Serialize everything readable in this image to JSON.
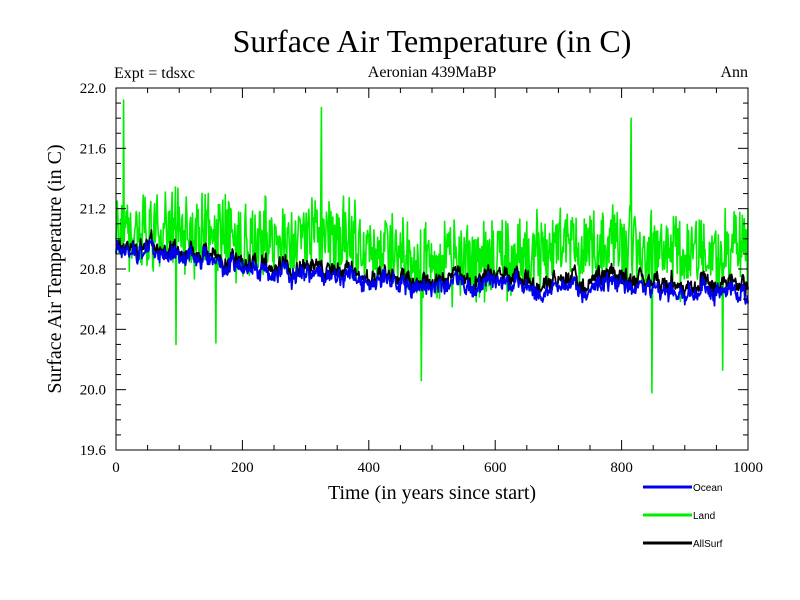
{
  "chart_data": {
    "type": "line",
    "title": "Surface Air Temperature (in C)",
    "subtitle_left": "Expt = tdsxc",
    "subtitle_center": "Aeronian 439MaBP",
    "subtitle_right": "Ann",
    "xlabel": "Time (in years since start)",
    "ylabel": "Surface Air Temperature (in C)",
    "xlim": [
      0,
      1000
    ],
    "ylim": [
      19.6,
      22.0
    ],
    "x_ticks": [
      0,
      200,
      400,
      600,
      800,
      1000
    ],
    "x_tick_labels": [
      "0",
      "200",
      "400",
      "600",
      "800",
      "1000"
    ],
    "y_ticks": [
      19.6,
      20.0,
      20.4,
      20.8,
      21.2,
      21.6,
      22.0
    ],
    "y_tick_labels": [
      "19.6",
      "20.0",
      "20.4",
      "20.8",
      "21.2",
      "21.6",
      "22.0"
    ],
    "legend_position": "bottom-right, below plot",
    "series": [
      {
        "name": "Land",
        "color": "#00ee00",
        "x": [
          0,
          100,
          200,
          300,
          400,
          500,
          600,
          700,
          800,
          900,
          1000
        ],
        "values": [
          21.05,
          21.05,
          21.0,
          21.05,
          20.95,
          20.85,
          20.85,
          20.95,
          20.95,
          20.9,
          20.95
        ],
        "noise_amplitude": 0.32,
        "extremes": [
          {
            "x": 12,
            "y": 21.92
          },
          {
            "x": 325,
            "y": 21.87
          },
          {
            "x": 815,
            "y": 21.8
          },
          {
            "x": 483,
            "y": 20.06
          },
          {
            "x": 848,
            "y": 19.98
          },
          {
            "x": 960,
            "y": 20.13
          },
          {
            "x": 95,
            "y": 20.3
          },
          {
            "x": 158,
            "y": 20.31
          }
        ]
      },
      {
        "name": "Ocean",
        "color": "#0000ee",
        "x": [
          0,
          100,
          200,
          300,
          400,
          500,
          600,
          700,
          800,
          900,
          1000
        ],
        "values": [
          20.92,
          20.9,
          20.78,
          20.8,
          20.72,
          20.68,
          20.72,
          20.66,
          20.68,
          20.66,
          20.62
        ],
        "noise_amplitude": 0.09
      },
      {
        "name": "AllSurf",
        "color": "#000000",
        "x": [
          0,
          100,
          200,
          300,
          400,
          500,
          600,
          700,
          800,
          900,
          1000
        ],
        "values": [
          20.95,
          20.93,
          20.82,
          20.84,
          20.76,
          20.72,
          20.76,
          20.71,
          20.73,
          20.71,
          20.68
        ],
        "noise_amplitude": 0.09
      }
    ]
  }
}
